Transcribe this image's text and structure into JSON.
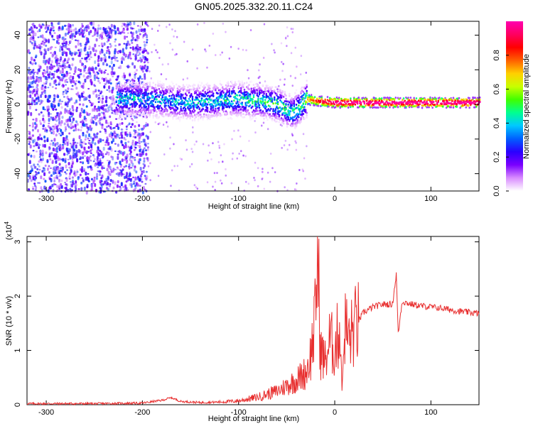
{
  "title": "GN05.2025.332.20.11.C24",
  "chart_data": [
    {
      "type": "heatmap",
      "xlabel": "Height of straight line (km)",
      "ylabel": "Frequency (Hz)",
      "xlim": [
        -320,
        150
      ],
      "ylim": [
        -50,
        48
      ],
      "xticks": [
        -300,
        -200,
        -100,
        0,
        100
      ],
      "yticks": [
        -40,
        -20,
        0,
        20,
        40
      ],
      "colorbar": {
        "label": "Normalized spectral amplitude",
        "range": [
          0,
          1
        ],
        "ticks": [
          "0.0",
          "0.2",
          "0.4",
          "0.6",
          "0.8"
        ],
        "colors": [
          "#ffffff",
          "#d98cff",
          "#7a00ff",
          "#2a00ff",
          "#0060ff",
          "#00c8ff",
          "#00ff90",
          "#40ff00",
          "#c8ff00",
          "#ffd000",
          "#ff6000",
          "#ff0000",
          "#ff0060",
          "#ff00b0"
        ]
      },
      "ridge": [
        {
          "x": -225,
          "f": 3,
          "a": 0.45
        },
        {
          "x": -200,
          "f": 3,
          "a": 0.45
        },
        {
          "x": -175,
          "f": 2,
          "a": 0.4
        },
        {
          "x": -150,
          "f": 1,
          "a": 0.45
        },
        {
          "x": -125,
          "f": 2,
          "a": 0.45
        },
        {
          "x": -100,
          "f": 3,
          "a": 0.5
        },
        {
          "x": -80,
          "f": 2,
          "a": 0.5
        },
        {
          "x": -60,
          "f": 0,
          "a": 0.55
        },
        {
          "x": -45,
          "f": -5,
          "a": 0.5
        },
        {
          "x": -38,
          "f": -2,
          "a": 0.6
        },
        {
          "x": -30,
          "f": 3,
          "a": 0.7
        },
        {
          "x": -20,
          "f": 2,
          "a": 0.85
        },
        {
          "x": 0,
          "f": 1,
          "a": 1.0
        },
        {
          "x": 50,
          "f": 1,
          "a": 1.0
        },
        {
          "x": 100,
          "f": 1,
          "a": 1.0
        },
        {
          "x": 150,
          "f": 1,
          "a": 1.0
        }
      ]
    },
    {
      "type": "line",
      "xlabel": "Height of straight line (km)",
      "ylabel": "SNR (10 * v/v)",
      "multiplier_label": "(x10",
      "multiplier_exp": "4",
      "xlim": [
        -320,
        150
      ],
      "ylim": [
        0,
        3.1
      ],
      "xticks": [
        -300,
        -200,
        -100,
        0,
        100
      ],
      "yticks": [
        0,
        1,
        2,
        3
      ],
      "color": "#e83030",
      "series": [
        {
          "x": [
            -320,
            -250,
            -200,
            -180,
            -170,
            -160,
            -140,
            -120,
            -100,
            -80,
            -60,
            -50,
            -40,
            -30,
            -25,
            -20,
            -18,
            -15,
            -10,
            -5,
            0,
            5,
            8,
            10,
            15,
            20,
            25,
            30,
            40,
            50,
            60,
            64,
            66,
            70,
            80,
            90,
            100,
            110,
            120,
            130,
            140,
            150
          ],
          "y": [
            0.02,
            0.02,
            0.03,
            0.08,
            0.13,
            0.06,
            0.04,
            0.05,
            0.07,
            0.14,
            0.25,
            0.35,
            0.45,
            0.6,
            0.9,
            1.6,
            3.08,
            1.0,
            0.8,
            1.2,
            1.0,
            1.45,
            0.3,
            1.5,
            1.2,
            1.4,
            1.55,
            1.7,
            1.8,
            1.85,
            1.85,
            2.4,
            1.3,
            1.9,
            1.85,
            1.82,
            1.8,
            1.78,
            1.75,
            1.72,
            1.7,
            1.68
          ]
        }
      ]
    }
  ]
}
